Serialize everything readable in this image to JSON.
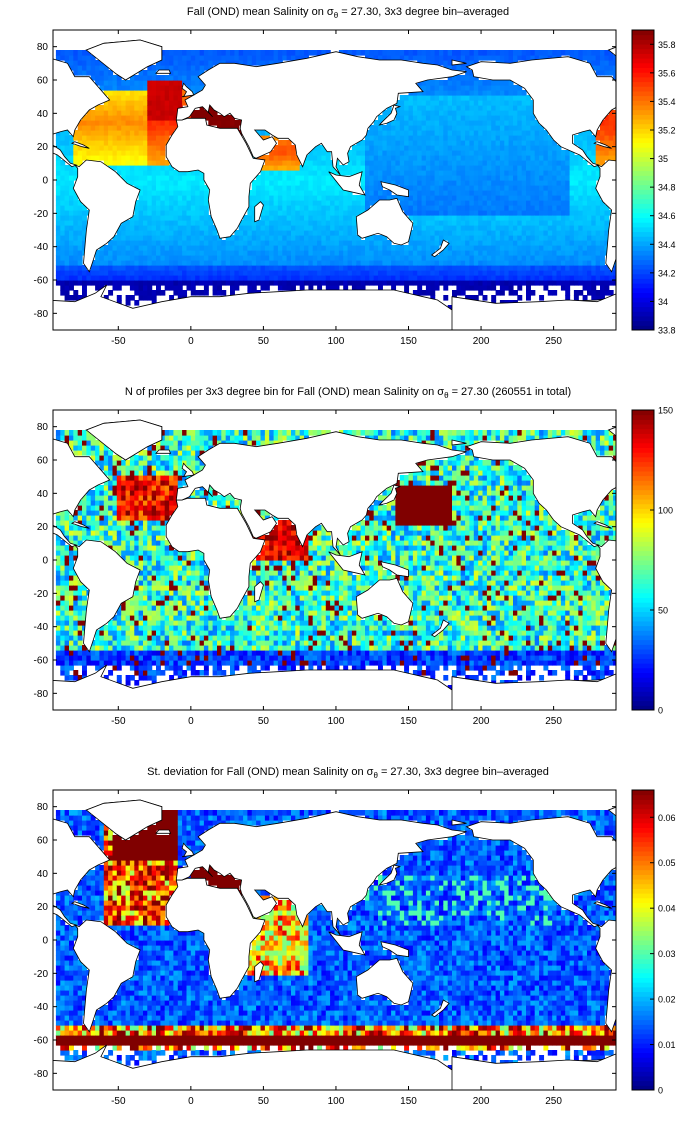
{
  "charts": [
    {
      "title_pre": "Fall (OND) mean Salinity on ",
      "title_sym": "σ",
      "title_sub": "θ",
      "title_post": " = 27.30, 3x3 degree bin–averaged",
      "chart_data": {
        "type": "heatmap",
        "field": "mean_salinity",
        "x_ticks": [
          -50,
          0,
          50,
          100,
          150,
          200,
          250
        ],
        "y_ticks": [
          -80,
          -60,
          -40,
          -20,
          0,
          20,
          40,
          60,
          80
        ],
        "xlim": [
          -95,
          293
        ],
        "ylim": [
          -90,
          90
        ],
        "bin_size_deg": 3,
        "colorbar": {
          "min": 33.8,
          "max": 35.9,
          "ticks": [
            33.8,
            34,
            34.2,
            34.4,
            34.6,
            34.8,
            35,
            35.2,
            35.4,
            35.6,
            35.8
          ]
        },
        "colormap": "jet"
      }
    },
    {
      "title_pre": "N of profiles per 3x3 degree bin for Fall (OND) mean Salinity on ",
      "title_sym": "σ",
      "title_sub": "θ",
      "title_post": " = 27.30 (260551 in total)",
      "chart_data": {
        "type": "heatmap",
        "field": "profile_count",
        "total_profiles": 260551,
        "x_ticks": [
          -50,
          0,
          50,
          100,
          150,
          200,
          250
        ],
        "y_ticks": [
          -80,
          -60,
          -40,
          -20,
          0,
          20,
          40,
          60,
          80
        ],
        "xlim": [
          -95,
          293
        ],
        "ylim": [
          -90,
          90
        ],
        "bin_size_deg": 3,
        "colorbar": {
          "min": 0,
          "max": 150,
          "ticks": [
            0,
            50,
            100,
            150
          ]
        },
        "colormap": "jet"
      }
    },
    {
      "title_pre": "St. deviation for Fall (OND) mean Salinity on ",
      "title_sym": "σ",
      "title_sub": "θ",
      "title_post": " = 27.30, 3x3 degree bin–averaged",
      "chart_data": {
        "type": "heatmap",
        "field": "salinity_std",
        "x_ticks": [
          -50,
          0,
          50,
          100,
          150,
          200,
          250
        ],
        "y_ticks": [
          -80,
          -60,
          -40,
          -20,
          0,
          20,
          40,
          60,
          80
        ],
        "xlim": [
          -95,
          293
        ],
        "ylim": [
          -90,
          90
        ],
        "bin_size_deg": 3,
        "colorbar": {
          "min": 0,
          "max": 0.066,
          "ticks": [
            0,
            0.01,
            0.02,
            0.03,
            0.04,
            0.05,
            0.06
          ]
        },
        "colormap": "jet"
      }
    }
  ]
}
